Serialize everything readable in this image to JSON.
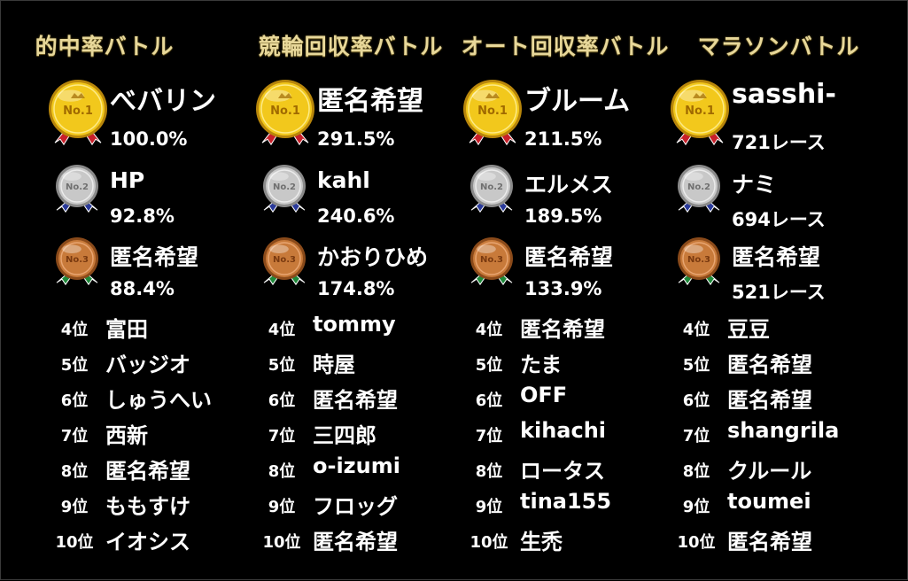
{
  "columns": [
    {
      "title": "的中率バトル",
      "top3": [
        {
          "medal": "gold-medal-no1",
          "name": "べバリン",
          "value": "100.0%"
        },
        {
          "medal": "silver-medal-no2",
          "name": "HP",
          "value": "92.8%"
        },
        {
          "medal": "bronze-medal-no3",
          "name": "匿名希望",
          "value": "88.4%"
        }
      ],
      "ranks": [
        {
          "pos": "4位",
          "name": "富田"
        },
        {
          "pos": "5位",
          "name": "バッジオ"
        },
        {
          "pos": "6位",
          "name": "しゅうへい"
        },
        {
          "pos": "7位",
          "name": "西新"
        },
        {
          "pos": "8位",
          "name": "匿名希望"
        },
        {
          "pos": "9位",
          "name": "ももすけ"
        },
        {
          "pos": "10位",
          "name": "イオシス"
        }
      ]
    },
    {
      "title": "競輪回収率バトル",
      "top3": [
        {
          "medal": "gold-medal-no1",
          "name": "匿名希望",
          "value": "291.5%"
        },
        {
          "medal": "silver-medal-no2",
          "name": "kahl",
          "value": "240.6%"
        },
        {
          "medal": "bronze-medal-no3",
          "name": "かおりひめ",
          "value": "174.8%"
        }
      ],
      "ranks": [
        {
          "pos": "4位",
          "name": "tommy"
        },
        {
          "pos": "5位",
          "name": "時屋"
        },
        {
          "pos": "6位",
          "name": "匿名希望"
        },
        {
          "pos": "7位",
          "name": "三四郎"
        },
        {
          "pos": "8位",
          "name": "o-izumi"
        },
        {
          "pos": "9位",
          "name": "フロッグ"
        },
        {
          "pos": "10位",
          "name": "匿名希望"
        }
      ]
    },
    {
      "title": "オート回収率バトル",
      "top3": [
        {
          "medal": "gold-medal-no1",
          "name": "ブルーム",
          "value": "211.5%"
        },
        {
          "medal": "silver-medal-no2",
          "name": "エルメス",
          "value": "189.5%"
        },
        {
          "medal": "bronze-medal-no3",
          "name": "匿名希望",
          "value": "133.9%"
        }
      ],
      "ranks": [
        {
          "pos": "4位",
          "name": "匿名希望"
        },
        {
          "pos": "5位",
          "name": "たま"
        },
        {
          "pos": "6位",
          "name": "OFF"
        },
        {
          "pos": "7位",
          "name": "kihachi"
        },
        {
          "pos": "8位",
          "name": "ロータス"
        },
        {
          "pos": "9位",
          "name": "tina155"
        },
        {
          "pos": "10位",
          "name": "生禿"
        }
      ]
    },
    {
      "title": "マラソンバトル",
      "top3": [
        {
          "medal": "gold-medal-no1",
          "name": "sasshi-",
          "value": "721レース"
        },
        {
          "medal": "silver-medal-no2",
          "name": "ナミ",
          "value": "694レース"
        },
        {
          "medal": "bronze-medal-no3",
          "name": "匿名希望",
          "value": "521レース"
        }
      ],
      "ranks": [
        {
          "pos": "4位",
          "name": "豆豆"
        },
        {
          "pos": "5位",
          "name": "匿名希望"
        },
        {
          "pos": "6位",
          "name": "匿名希望"
        },
        {
          "pos": "7位",
          "name": "shangrila"
        },
        {
          "pos": "8位",
          "name": "クルール"
        },
        {
          "pos": "9位",
          "name": "toumei"
        },
        {
          "pos": "10位",
          "name": "匿名希望"
        }
      ]
    }
  ],
  "medal_labels": {
    "gold": "No.1",
    "silver": "No.2",
    "bronze": "No.3"
  },
  "colors": {
    "background": "#000000",
    "title": "#e8d89a",
    "text": "#ffffff",
    "gold": "#f2c81c",
    "silver": "#c8c8c8",
    "bronze": "#c87a3a",
    "ribbon_gold": "#c8202a",
    "ribbon_silver": "#2a3a9a",
    "ribbon_bronze": "#1e8a3a"
  }
}
